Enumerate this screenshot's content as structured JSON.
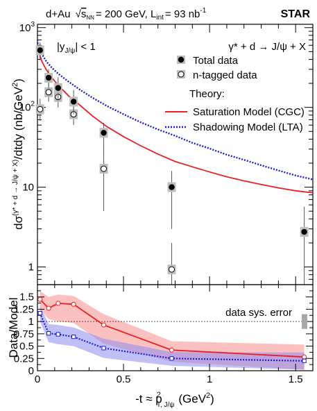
{
  "header": {
    "prefix": "d+Au",
    "sqrt_sub": "NN",
    "energy": "= 200 GeV, L",
    "lumi_sub": "int",
    "lumi_val": "= 93 nb",
    "lumi_exp": "-1",
    "experiment": "STAR"
  },
  "chart_data": [
    {
      "type": "scatter",
      "panel": "cross-section",
      "annotations": {
        "rapidity": "|y",
        "rapidity_sub": "J/ψ",
        "rapidity_tail": "| < 1",
        "process": "γ* + d → J/ψ + X"
      },
      "ylabel": {
        "main": "dσ",
        "sup": "(γ* + d → J/ψ + X)",
        "tail": "/dtdy (nb/GeV",
        "exp": "2",
        "close": ")"
      },
      "yscale": "log",
      "ylim": [
        0.6,
        1100
      ],
      "xlim": [
        0,
        1.6
      ],
      "ytick_labels": [
        "1",
        "10",
        "10",
        "10"
      ],
      "ytick_exps": [
        "",
        "",
        "2",
        "3"
      ],
      "legend": {
        "total": "Total data",
        "ntag": "n-tagged data",
        "theory_head": "Theory:",
        "cgc": "Saturation Model (CGC)",
        "lta": "Shadowing Model (LTA)"
      },
      "colors": {
        "cgc": "#ee1c25",
        "lta": "#1a1ad8",
        "sys_box": "#bdbdbd"
      },
      "series": [
        {
          "name": "Total data",
          "points": [
            {
              "x": 0.015,
              "y": 520,
              "lo": 390,
              "hi": 650
            },
            {
              "x": 0.065,
              "y": 235,
              "lo": 175,
              "hi": 300
            },
            {
              "x": 0.12,
              "y": 175,
              "lo": 125,
              "hi": 240
            },
            {
              "x": 0.21,
              "y": 118,
              "lo": 82,
              "hi": 165
            },
            {
              "x": 0.385,
              "y": 48,
              "lo": 28,
              "hi": 64
            },
            {
              "x": 0.78,
              "y": 10,
              "lo": 3.0,
              "hi": 16
            },
            {
              "x": 1.55,
              "y": 2.75,
              "lo": 0.6,
              "hi": 5.7
            }
          ]
        },
        {
          "name": "n-tagged data",
          "points": [
            {
              "x": 0.015,
              "y": 95,
              "lo": 68,
              "hi": 128
            },
            {
              "x": 0.065,
              "y": 155,
              "lo": 118,
              "hi": 200
            },
            {
              "x": 0.12,
              "y": 135,
              "lo": 100,
              "hi": 185
            },
            {
              "x": 0.21,
              "y": 82,
              "lo": 60,
              "hi": 110
            },
            {
              "x": 0.385,
              "y": 17,
              "lo": 5.0,
              "hi": 30
            },
            {
              "x": 0.78,
              "y": 0.93,
              "lo": 0.6,
              "hi": 2.0
            }
          ]
        },
        {
          "name": "Saturation Model (CGC)",
          "points": [
            [
              0,
              600
            ],
            [
              0.01,
              480
            ],
            [
              0.025,
              380
            ],
            [
              0.05,
              300
            ],
            [
              0.08,
              240
            ],
            [
              0.12,
              190
            ],
            [
              0.18,
              140
            ],
            [
              0.25,
              105
            ],
            [
              0.32,
              78
            ],
            [
              0.4,
              58
            ],
            [
              0.5,
              43
            ],
            [
              0.6,
              33
            ],
            [
              0.7,
              26
            ],
            [
              0.8,
              21
            ],
            [
              0.9,
              18
            ],
            [
              1.0,
              15.5
            ],
            [
              1.1,
              13.5
            ],
            [
              1.2,
              12
            ],
            [
              1.3,
              10.8
            ],
            [
              1.4,
              9.8
            ],
            [
              1.5,
              9.0
            ],
            [
              1.6,
              8.5
            ]
          ]
        },
        {
          "name": "Shadowing Model (LTA)",
          "points": [
            [
              0,
              650
            ],
            [
              0.025,
              470
            ],
            [
              0.05,
              380
            ],
            [
              0.08,
              320
            ],
            [
              0.12,
              265
            ],
            [
              0.18,
              210
            ],
            [
              0.25,
              165
            ],
            [
              0.32,
              132
            ],
            [
              0.4,
              105
            ],
            [
              0.5,
              82
            ],
            [
              0.6,
              65
            ],
            [
              0.7,
              53
            ],
            [
              0.8,
              44
            ],
            [
              0.9,
              36
            ],
            [
              1.0,
              30.5
            ],
            [
              1.1,
              25.5
            ],
            [
              1.2,
              22
            ],
            [
              1.3,
              18.8
            ],
            [
              1.4,
              16.2
            ],
            [
              1.5,
              14
            ],
            [
              1.6,
              12.5
            ]
          ]
        }
      ]
    },
    {
      "type": "line",
      "panel": "ratio",
      "ylabel": "Data/Model",
      "xlabel": {
        "pre": "-t ≈ p",
        "sup": "2",
        "sub": "T, J/ψ",
        "unit_pre": "(GeV",
        "unit_exp": "2",
        "unit_post": ")"
      },
      "xlim": [
        0,
        1.6
      ],
      "ylim": [
        0,
        1.75
      ],
      "xtick_labels": [
        "0",
        "0.5",
        "1",
        "1.5"
      ],
      "ytick_labels": [
        "0",
        "0.25",
        "0.5",
        "0.75",
        "1",
        "1.25",
        "1.5"
      ],
      "sys_label": "data sys. error",
      "series": [
        {
          "name": "Saturation Model (CGC)",
          "x": [
            0.015,
            0.065,
            0.12,
            0.21,
            0.385,
            0.78,
            1.55
          ],
          "values": [
            1.45,
            1.27,
            1.37,
            1.35,
            0.93,
            0.42,
            0.28
          ],
          "band_lo": [
            1.25,
            1.05,
            1.0,
            0.97,
            0.55,
            0.18,
            0.02
          ],
          "band_hi": [
            1.62,
            1.5,
            1.55,
            1.52,
            1.15,
            0.6,
            0.53
          ]
        },
        {
          "name": "Shadowing Model (LTA)",
          "x": [
            0.015,
            0.065,
            0.12,
            0.21,
            0.385,
            0.78,
            1.55
          ],
          "values": [
            1.17,
            0.76,
            0.74,
            0.69,
            0.46,
            0.25,
            0.2
          ],
          "band_lo": [
            1.0,
            0.58,
            0.54,
            0.5,
            0.26,
            0.1,
            0.02
          ],
          "band_hi": [
            1.32,
            0.95,
            0.93,
            0.88,
            0.65,
            0.38,
            0.37
          ]
        }
      ],
      "reference_line": 1,
      "sys_error_range": [
        0.85,
        1.15
      ]
    }
  ]
}
